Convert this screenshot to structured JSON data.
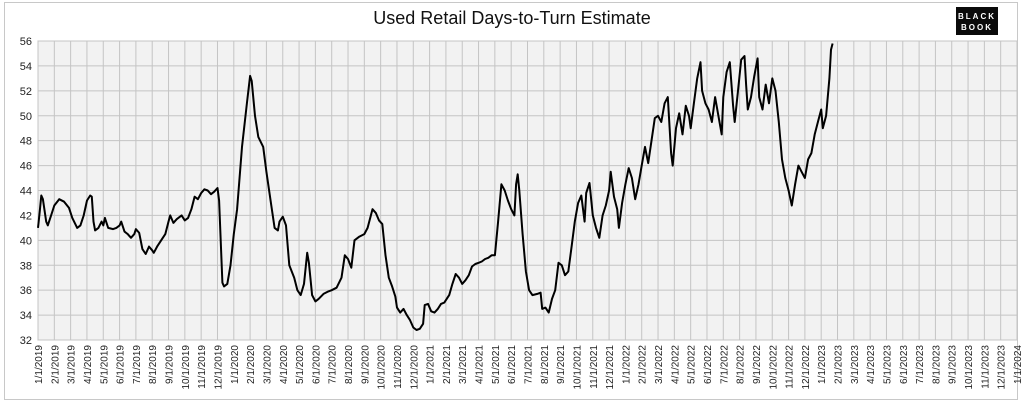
{
  "logo": {
    "line1": "BLACK",
    "line2": "BOOK"
  },
  "chart_data": {
    "type": "line",
    "title": "Used Retail Days-to-Turn Estimate",
    "xlabel": "",
    "ylabel": "",
    "ylim": [
      32,
      56
    ],
    "y_ticks": [
      32,
      34,
      36,
      38,
      40,
      42,
      44,
      46,
      48,
      50,
      52,
      54,
      56
    ],
    "x_tick_labels": [
      "1/1/2019",
      "2/1/2019",
      "3/1/2019",
      "4/1/2019",
      "5/1/2019",
      "6/1/2019",
      "7/1/2019",
      "8/1/2019",
      "9/1/2019",
      "10/1/2019",
      "11/1/2019",
      "12/1/2019",
      "1/1/2020",
      "2/1/2020",
      "3/1/2020",
      "4/1/2020",
      "5/1/2020",
      "6/1/2020",
      "7/1/2020",
      "8/1/2020",
      "9/1/2020",
      "10/1/2020",
      "11/1/2020",
      "12/1/2020",
      "1/1/2021",
      "2/1/2021",
      "3/1/2021",
      "4/1/2021",
      "5/1/2021",
      "6/1/2021",
      "7/1/2021",
      "8/1/2021",
      "9/1/2021",
      "10/1/2021",
      "11/1/2021",
      "12/1/2021",
      "1/1/2022",
      "2/1/2022",
      "3/1/2022",
      "4/1/2022",
      "5/1/2022",
      "6/1/2022",
      "7/1/2022",
      "8/1/2022",
      "9/1/2022",
      "10/1/2022",
      "11/1/2022",
      "12/1/2022",
      "1/1/2023",
      "2/1/2023",
      "3/1/2023",
      "4/1/2023",
      "5/1/2023",
      "6/1/2023",
      "7/1/2023",
      "8/1/2023",
      "9/1/2023",
      "10/1/2023",
      "11/1/2023",
      "12/1/2023",
      "1/1/2024"
    ],
    "grid": true,
    "series": [
      {
        "color": "#000000",
        "points": [
          [
            0,
            41.0
          ],
          [
            0.1,
            42.2
          ],
          [
            0.2,
            43.6
          ],
          [
            0.3,
            43.3
          ],
          [
            0.5,
            41.5
          ],
          [
            0.6,
            41.2
          ],
          [
            0.8,
            42.0
          ],
          [
            1.0,
            42.8
          ],
          [
            1.3,
            43.3
          ],
          [
            1.6,
            43.1
          ],
          [
            1.9,
            42.6
          ],
          [
            2.1,
            41.8
          ],
          [
            2.4,
            41.0
          ],
          [
            2.6,
            41.2
          ],
          [
            2.8,
            42.0
          ],
          [
            3.0,
            43.2
          ],
          [
            3.2,
            43.6
          ],
          [
            3.3,
            43.5
          ],
          [
            3.4,
            41.5
          ],
          [
            3.5,
            40.8
          ],
          [
            3.7,
            41.0
          ],
          [
            3.9,
            41.5
          ],
          [
            4.0,
            41.2
          ],
          [
            4.1,
            41.8
          ],
          [
            4.3,
            41.0
          ],
          [
            4.6,
            40.9
          ],
          [
            4.8,
            41.0
          ],
          [
            5.0,
            41.2
          ],
          [
            5.1,
            41.5
          ],
          [
            5.3,
            40.7
          ],
          [
            5.5,
            40.5
          ],
          [
            5.7,
            40.2
          ],
          [
            5.9,
            40.5
          ],
          [
            6.0,
            40.9
          ],
          [
            6.2,
            40.6
          ],
          [
            6.4,
            39.3
          ],
          [
            6.6,
            38.9
          ],
          [
            6.8,
            39.5
          ],
          [
            7.0,
            39.2
          ],
          [
            7.1,
            39.0
          ],
          [
            7.3,
            39.5
          ],
          [
            7.6,
            40.1
          ],
          [
            7.8,
            40.5
          ],
          [
            8.0,
            41.5
          ],
          [
            8.1,
            42.0
          ],
          [
            8.3,
            41.4
          ],
          [
            8.5,
            41.7
          ],
          [
            8.8,
            42.0
          ],
          [
            9.0,
            41.6
          ],
          [
            9.2,
            41.8
          ],
          [
            9.4,
            42.5
          ],
          [
            9.6,
            43.5
          ],
          [
            9.8,
            43.3
          ],
          [
            10.0,
            43.8
          ],
          [
            10.2,
            44.1
          ],
          [
            10.4,
            44.0
          ],
          [
            10.6,
            43.7
          ],
          [
            10.8,
            43.9
          ],
          [
            11.0,
            44.2
          ],
          [
            11.1,
            43.2
          ],
          [
            11.3,
            36.6
          ],
          [
            11.4,
            36.3
          ],
          [
            11.6,
            36.5
          ],
          [
            11.8,
            38.0
          ],
          [
            12.0,
            40.5
          ],
          [
            12.2,
            42.5
          ],
          [
            12.5,
            47.5
          ],
          [
            12.8,
            51.0
          ],
          [
            13.0,
            53.2
          ],
          [
            13.1,
            52.8
          ],
          [
            13.3,
            50.0
          ],
          [
            13.5,
            48.3
          ],
          [
            13.8,
            47.5
          ],
          [
            14.0,
            45.5
          ],
          [
            14.3,
            42.8
          ],
          [
            14.5,
            41.0
          ],
          [
            14.7,
            40.8
          ],
          [
            14.8,
            41.5
          ],
          [
            15.0,
            41.9
          ],
          [
            15.2,
            41.2
          ],
          [
            15.4,
            38.0
          ],
          [
            15.7,
            37.0
          ],
          [
            15.9,
            36.0
          ],
          [
            16.1,
            35.6
          ],
          [
            16.3,
            36.5
          ],
          [
            16.5,
            39.0
          ],
          [
            16.6,
            38.2
          ],
          [
            16.8,
            35.6
          ],
          [
            17.0,
            35.1
          ],
          [
            17.2,
            35.3
          ],
          [
            17.5,
            35.7
          ],
          [
            17.8,
            35.9
          ],
          [
            18.0,
            36.0
          ],
          [
            18.3,
            36.2
          ],
          [
            18.6,
            37.0
          ],
          [
            18.8,
            38.8
          ],
          [
            19.0,
            38.5
          ],
          [
            19.2,
            37.8
          ],
          [
            19.4,
            40.0
          ],
          [
            19.7,
            40.3
          ],
          [
            20.0,
            40.5
          ],
          [
            20.2,
            41.0
          ],
          [
            20.5,
            42.5
          ],
          [
            20.7,
            42.2
          ],
          [
            20.9,
            41.6
          ],
          [
            21.1,
            41.3
          ],
          [
            21.3,
            38.8
          ],
          [
            21.5,
            37.0
          ],
          [
            21.7,
            36.3
          ],
          [
            21.9,
            35.5
          ],
          [
            22.0,
            34.6
          ],
          [
            22.2,
            34.2
          ],
          [
            22.4,
            34.5
          ],
          [
            22.6,
            34.0
          ],
          [
            22.8,
            33.6
          ],
          [
            23.0,
            33.0
          ],
          [
            23.2,
            32.8
          ],
          [
            23.4,
            32.9
          ],
          [
            23.6,
            33.3
          ],
          [
            23.7,
            34.8
          ],
          [
            23.9,
            34.9
          ],
          [
            24.1,
            34.3
          ],
          [
            24.3,
            34.2
          ],
          [
            24.5,
            34.5
          ],
          [
            24.7,
            34.9
          ],
          [
            24.9,
            35.0
          ],
          [
            25.2,
            35.6
          ],
          [
            25.4,
            36.5
          ],
          [
            25.6,
            37.3
          ],
          [
            25.8,
            37.0
          ],
          [
            26.0,
            36.5
          ],
          [
            26.2,
            36.8
          ],
          [
            26.4,
            37.2
          ],
          [
            26.6,
            37.9
          ],
          [
            26.8,
            38.1
          ],
          [
            27.0,
            38.2
          ],
          [
            27.2,
            38.3
          ],
          [
            27.4,
            38.5
          ],
          [
            27.6,
            38.6
          ],
          [
            27.8,
            38.8
          ],
          [
            28.0,
            38.8
          ],
          [
            28.2,
            41.5
          ],
          [
            28.4,
            44.5
          ],
          [
            28.6,
            44.0
          ],
          [
            28.8,
            43.2
          ],
          [
            29.0,
            42.5
          ],
          [
            29.2,
            42.0
          ],
          [
            29.3,
            44.5
          ],
          [
            29.4,
            45.3
          ],
          [
            29.5,
            44.0
          ],
          [
            29.7,
            40.5
          ],
          [
            29.9,
            37.5
          ],
          [
            30.1,
            36.0
          ],
          [
            30.3,
            35.6
          ],
          [
            30.6,
            35.7
          ],
          [
            30.8,
            35.8
          ],
          [
            30.9,
            34.5
          ],
          [
            31.1,
            34.6
          ],
          [
            31.3,
            34.2
          ],
          [
            31.5,
            35.3
          ],
          [
            31.7,
            36.0
          ],
          [
            31.9,
            38.2
          ],
          [
            32.1,
            38.0
          ],
          [
            32.3,
            37.2
          ],
          [
            32.5,
            37.5
          ],
          [
            32.7,
            39.5
          ],
          [
            32.9,
            41.5
          ],
          [
            33.1,
            43.0
          ],
          [
            33.3,
            43.6
          ],
          [
            33.5,
            41.5
          ],
          [
            33.6,
            43.8
          ],
          [
            33.8,
            44.6
          ],
          [
            34.0,
            42.0
          ],
          [
            34.2,
            41.0
          ],
          [
            34.4,
            40.2
          ],
          [
            34.6,
            42.0
          ],
          [
            34.8,
            42.8
          ],
          [
            35.0,
            44.0
          ],
          [
            35.1,
            45.5
          ],
          [
            35.3,
            43.5
          ],
          [
            35.5,
            42.5
          ],
          [
            35.6,
            41.0
          ],
          [
            35.8,
            43.0
          ],
          [
            36.0,
            44.5
          ],
          [
            36.2,
            45.8
          ],
          [
            36.4,
            45.0
          ],
          [
            36.6,
            43.3
          ],
          [
            36.8,
            44.5
          ],
          [
            37.0,
            46.0
          ],
          [
            37.2,
            47.5
          ],
          [
            37.4,
            46.2
          ],
          [
            37.6,
            48.0
          ],
          [
            37.8,
            49.8
          ],
          [
            38.0,
            50.0
          ],
          [
            38.2,
            49.5
          ],
          [
            38.4,
            51.0
          ],
          [
            38.6,
            51.5
          ],
          [
            38.8,
            47.0
          ],
          [
            38.9,
            46.0
          ],
          [
            39.1,
            49.0
          ],
          [
            39.3,
            50.2
          ],
          [
            39.5,
            48.5
          ],
          [
            39.7,
            50.8
          ],
          [
            39.9,
            50.0
          ],
          [
            40.0,
            49.0
          ],
          [
            40.2,
            51.0
          ],
          [
            40.4,
            53.0
          ],
          [
            40.6,
            54.3
          ],
          [
            40.7,
            52.0
          ],
          [
            40.9,
            51.0
          ],
          [
            41.1,
            50.5
          ],
          [
            41.3,
            49.5
          ],
          [
            41.5,
            51.5
          ],
          [
            41.7,
            50.0
          ],
          [
            41.9,
            48.5
          ],
          [
            42.0,
            51.5
          ],
          [
            42.2,
            53.5
          ],
          [
            42.4,
            54.3
          ],
          [
            42.6,
            50.8
          ],
          [
            42.7,
            49.5
          ],
          [
            42.9,
            52.0
          ],
          [
            43.1,
            54.5
          ],
          [
            43.3,
            54.8
          ],
          [
            43.4,
            52.5
          ],
          [
            43.5,
            50.5
          ],
          [
            43.7,
            51.5
          ],
          [
            43.9,
            53.2
          ],
          [
            44.1,
            54.6
          ],
          [
            44.2,
            51.5
          ],
          [
            44.4,
            50.5
          ],
          [
            44.6,
            52.5
          ],
          [
            44.8,
            51.0
          ],
          [
            45.0,
            53.0
          ],
          [
            45.2,
            52.0
          ],
          [
            45.4,
            49.5
          ],
          [
            45.6,
            46.5
          ],
          [
            45.8,
            45.0
          ],
          [
            46.0,
            44.0
          ],
          [
            46.2,
            42.8
          ],
          [
            46.4,
            44.5
          ],
          [
            46.6,
            46.0
          ],
          [
            46.8,
            45.5
          ],
          [
            47.0,
            45.0
          ],
          [
            47.2,
            46.5
          ],
          [
            47.4,
            47.0
          ],
          [
            47.6,
            48.5
          ],
          [
            47.8,
            49.5
          ],
          [
            48.0,
            50.5
          ],
          [
            48.1,
            49.0
          ],
          [
            48.3,
            50.0
          ],
          [
            48.5,
            53.0
          ],
          [
            48.6,
            55.3
          ],
          [
            48.7,
            55.8
          ]
        ]
      }
    ]
  }
}
